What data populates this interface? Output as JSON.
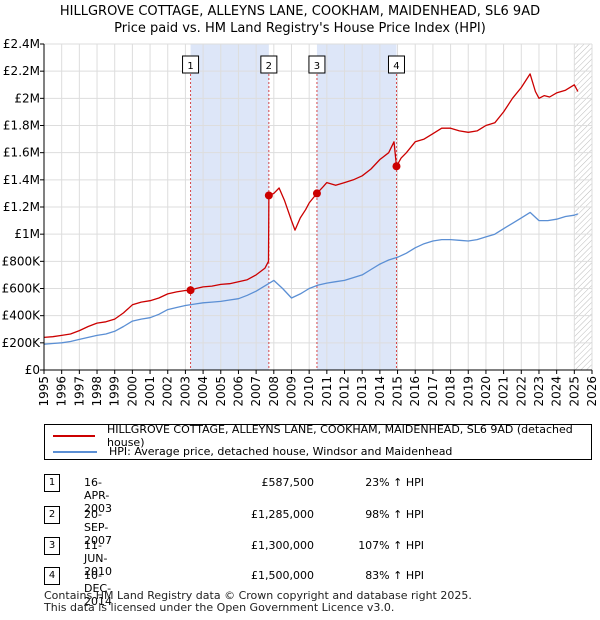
{
  "title_line1": "HILLGROVE COTTAGE, ALLEYNS LANE, COOKHAM, MAIDENHEAD, SL6 9AD",
  "title_line2": "Price paid vs. HM Land Registry's House Price Index (HPI)",
  "colors": {
    "property": "#cc0000",
    "hpi": "#5b8fd4",
    "shade": "#dde6f8",
    "grid": "#dddddd"
  },
  "chart_data": {
    "type": "line",
    "title": "Price paid vs. HM Land Registry's House Price Index (HPI)",
    "xlim": [
      1995,
      2026
    ],
    "ylim": [
      0,
      2400000
    ],
    "x_ticks": [
      1995,
      1996,
      1997,
      1998,
      1999,
      2000,
      2001,
      2002,
      2003,
      2004,
      2005,
      2006,
      2007,
      2008,
      2009,
      2010,
      2011,
      2012,
      2013,
      2014,
      2015,
      2016,
      2017,
      2018,
      2019,
      2020,
      2021,
      2022,
      2023,
      2024,
      2025,
      2026
    ],
    "x_tick_labels": [
      "1995",
      "1996",
      "1997",
      "1998",
      "1999",
      "2000",
      "2001",
      "2002",
      "2003",
      "2004",
      "2005",
      "2006",
      "2007",
      "2008",
      "2009",
      "2010",
      "2011",
      "2012",
      "2013",
      "2014",
      "2015",
      "2016",
      "2017",
      "2018",
      "2019",
      "2020",
      "2021",
      "2022",
      "2023",
      "2024",
      "2025",
      "2026"
    ],
    "y_ticks": [
      0,
      200000,
      400000,
      600000,
      800000,
      1000000,
      1200000,
      1400000,
      1600000,
      1800000,
      2000000,
      2200000,
      2400000
    ],
    "y_tick_labels": [
      "£0",
      "£200K",
      "£400K",
      "£600K",
      "£800K",
      "£1M",
      "£1.2M",
      "£1.4M",
      "£1.6M",
      "£1.8M",
      "£2M",
      "£2.2M",
      "£2.4M"
    ],
    "shaded_periods": [
      [
        2003.29,
        2007.72
      ],
      [
        2010.44,
        2014.94
      ]
    ],
    "hatched_from": 2025.0,
    "series": [
      {
        "name": "HILLGROVE COTTAGE, ALLEYNS LANE, COOKHAM, MAIDENHEAD, SL6 9AD (detached house)",
        "color": "#cc0000",
        "x": [
          1995.0,
          1995.5,
          1996.0,
          1996.5,
          1997.0,
          1997.5,
          1998.0,
          1998.5,
          1999.0,
          1999.5,
          2000.0,
          2000.5,
          2001.0,
          2001.5,
          2002.0,
          2002.5,
          2003.0,
          2003.29,
          2003.6,
          2004.0,
          2004.5,
          2005.0,
          2005.5,
          2006.0,
          2006.5,
          2007.0,
          2007.5,
          2007.7,
          2007.72,
          2008.0,
          2008.3,
          2008.6,
          2009.0,
          2009.2,
          2009.5,
          2009.8,
          2010.0,
          2010.44,
          2010.8,
          2011.0,
          2011.5,
          2012.0,
          2012.5,
          2013.0,
          2013.5,
          2014.0,
          2014.5,
          2014.8,
          2014.94,
          2015.2,
          2015.5,
          2016.0,
          2016.5,
          2017.0,
          2017.5,
          2018.0,
          2018.5,
          2019.0,
          2019.5,
          2020.0,
          2020.5,
          2021.0,
          2021.5,
          2022.0,
          2022.5,
          2022.8,
          2023.0,
          2023.3,
          2023.6,
          2024.0,
          2024.5,
          2025.0,
          2025.2
        ],
        "values": [
          240000,
          245000,
          255000,
          265000,
          290000,
          320000,
          345000,
          355000,
          375000,
          420000,
          480000,
          500000,
          510000,
          530000,
          560000,
          575000,
          585000,
          587500,
          600000,
          612000,
          618000,
          630000,
          635000,
          650000,
          665000,
          700000,
          750000,
          800000,
          1285000,
          1300000,
          1340000,
          1250000,
          1100000,
          1030000,
          1120000,
          1180000,
          1230000,
          1300000,
          1350000,
          1380000,
          1360000,
          1380000,
          1400000,
          1430000,
          1480000,
          1550000,
          1600000,
          1680000,
          1500000,
          1560000,
          1600000,
          1680000,
          1700000,
          1740000,
          1780000,
          1780000,
          1760000,
          1750000,
          1760000,
          1800000,
          1820000,
          1900000,
          2000000,
          2080000,
          2180000,
          2050000,
          2000000,
          2020000,
          2010000,
          2040000,
          2060000,
          2100000,
          2050000
        ]
      },
      {
        "name": "HPI: Average price, detached house, Windsor and Maidenhead",
        "color": "#5b8fd4",
        "x": [
          1995.0,
          1995.5,
          1996.0,
          1996.5,
          1997.0,
          1997.5,
          1998.0,
          1998.5,
          1999.0,
          1999.5,
          2000.0,
          2000.5,
          2001.0,
          2001.5,
          2002.0,
          2002.5,
          2003.0,
          2003.5,
          2004.0,
          2004.5,
          2005.0,
          2005.5,
          2006.0,
          2006.5,
          2007.0,
          2007.5,
          2008.0,
          2008.5,
          2009.0,
          2009.5,
          2010.0,
          2010.5,
          2011.0,
          2011.5,
          2012.0,
          2012.5,
          2013.0,
          2013.5,
          2014.0,
          2014.5,
          2015.0,
          2015.5,
          2016.0,
          2016.5,
          2017.0,
          2017.5,
          2018.0,
          2018.5,
          2019.0,
          2019.5,
          2020.0,
          2020.5,
          2021.0,
          2021.5,
          2022.0,
          2022.5,
          2023.0,
          2023.5,
          2024.0,
          2024.5,
          2025.0,
          2025.2
        ],
        "values": [
          190000,
          195000,
          200000,
          210000,
          225000,
          240000,
          255000,
          265000,
          285000,
          320000,
          360000,
          375000,
          385000,
          410000,
          445000,
          460000,
          475000,
          485000,
          495000,
          500000,
          505000,
          515000,
          525000,
          550000,
          580000,
          620000,
          660000,
          600000,
          530000,
          560000,
          600000,
          625000,
          640000,
          650000,
          660000,
          680000,
          700000,
          740000,
          780000,
          810000,
          830000,
          860000,
          900000,
          930000,
          950000,
          960000,
          960000,
          955000,
          950000,
          960000,
          980000,
          1000000,
          1040000,
          1080000,
          1120000,
          1160000,
          1100000,
          1100000,
          1110000,
          1130000,
          1140000,
          1150000
        ]
      }
    ],
    "markers": [
      {
        "label": "1",
        "x": 2003.29,
        "y": 587500
      },
      {
        "label": "2",
        "x": 2007.72,
        "y": 1285000
      },
      {
        "label": "3",
        "x": 2010.44,
        "y": 1300000
      },
      {
        "label": "4",
        "x": 2014.94,
        "y": 1500000
      }
    ]
  },
  "legend": {
    "property_label": "HILLGROVE COTTAGE, ALLEYNS LANE, COOKHAM, MAIDENHEAD, SL6 9AD (detached house)",
    "hpi_label": "HPI: Average price, detached house, Windsor and Maidenhead"
  },
  "sales": [
    {
      "num": "1",
      "date": "16-APR-2003",
      "price": "£587,500",
      "hpi": "23% ↑ HPI"
    },
    {
      "num": "2",
      "date": "20-SEP-2007",
      "price": "£1,285,000",
      "hpi": "98% ↑ HPI"
    },
    {
      "num": "3",
      "date": "11-JUN-2010",
      "price": "£1,300,000",
      "hpi": "107% ↑ HPI"
    },
    {
      "num": "4",
      "date": "10-DEC-2014",
      "price": "£1,500,000",
      "hpi": "83% ↑ HPI"
    }
  ],
  "footer_line1": "Contains HM Land Registry data © Crown copyright and database right 2025.",
  "footer_line2": "This data is licensed under the Open Government Licence v3.0."
}
